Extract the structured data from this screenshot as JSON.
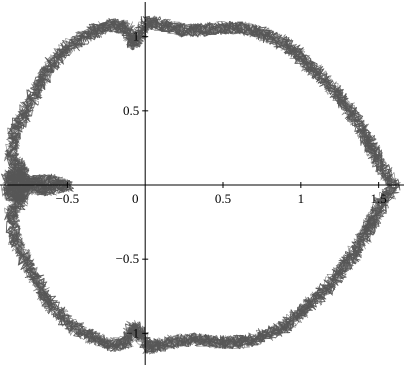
{
  "chart_data": {
    "type": "line",
    "title": "",
    "xlabel": "",
    "ylabel": "",
    "xlim": [
      -0.92,
      1.65
    ],
    "ylim": [
      -1.2,
      1.2
    ],
    "grid": false,
    "legend": "none",
    "colors": {
      "curve": "#555555",
      "axes": "#000000",
      "background": "#ffffff"
    },
    "x_ticks": [
      {
        "value": -0.5,
        "label": "−0.5"
      },
      {
        "value": 0,
        "label": "0"
      },
      {
        "value": 0.5,
        "label": "0.5"
      },
      {
        "value": 1,
        "label": "1"
      },
      {
        "value": 1.5,
        "label": "1.5"
      }
    ],
    "y_ticks": [
      {
        "value": 1,
        "label": "1"
      },
      {
        "value": 0.5,
        "label": "0.5"
      },
      {
        "value": -0.5,
        "label": "−0.5"
      },
      {
        "value": -1,
        "label": "−1"
      }
    ],
    "series": [
      {
        "roughness": 0.045,
        "x": [
          1.6,
          1.52,
          1.47,
          1.43,
          1.37,
          1.3,
          1.23,
          1.14,
          1.06,
          0.98,
          0.9,
          0.8,
          0.7,
          0.6,
          0.5,
          0.4,
          0.3,
          0.2,
          0.1,
          0.02,
          -0.04,
          -0.08,
          -0.12,
          -0.2,
          -0.3,
          -0.4,
          -0.5,
          -0.6,
          -0.66,
          -0.72,
          -0.78,
          -0.84,
          -0.86,
          -0.8,
          -0.78,
          -0.84,
          -0.88,
          -0.8,
          -0.72,
          -0.62,
          -0.5,
          -0.62,
          -0.72,
          -0.8,
          -0.88,
          -0.84,
          -0.78,
          -0.8,
          -0.86,
          -0.84,
          -0.78,
          -0.72,
          -0.66,
          -0.6,
          -0.5,
          -0.4,
          -0.3,
          -0.2,
          -0.12,
          -0.08,
          -0.04,
          0.02,
          0.1,
          0.2,
          0.3,
          0.4,
          0.5,
          0.6,
          0.7,
          0.8,
          0.9,
          0.98,
          1.06,
          1.14,
          1.23,
          1.3,
          1.37,
          1.43,
          1.47,
          1.52,
          1.6
        ],
        "y": [
          0.0,
          0.12,
          0.22,
          0.3,
          0.42,
          0.52,
          0.62,
          0.72,
          0.8,
          0.88,
          0.95,
          1.0,
          1.04,
          1.06,
          1.06,
          1.05,
          1.04,
          1.05,
          1.08,
          1.1,
          1.0,
          0.95,
          1.06,
          1.08,
          1.05,
          1.0,
          0.92,
          0.82,
          0.72,
          0.6,
          0.48,
          0.35,
          0.2,
          0.1,
          0.05,
          0.08,
          0.04,
          -0.02,
          0.02,
          0.03,
          0.0,
          -0.03,
          -0.02,
          0.02,
          -0.04,
          -0.08,
          -0.05,
          -0.1,
          -0.2,
          -0.35,
          -0.48,
          -0.6,
          -0.72,
          -0.82,
          -0.92,
          -1.0,
          -1.05,
          -1.08,
          -1.06,
          -0.95,
          -1.0,
          -1.1,
          -1.08,
          -1.05,
          -1.04,
          -1.05,
          -1.06,
          -1.06,
          -1.04,
          -1.0,
          -0.95,
          -0.88,
          -0.8,
          -0.72,
          -0.62,
          -0.52,
          -0.42,
          -0.3,
          -0.22,
          -0.12,
          0.0
        ]
      }
    ]
  }
}
